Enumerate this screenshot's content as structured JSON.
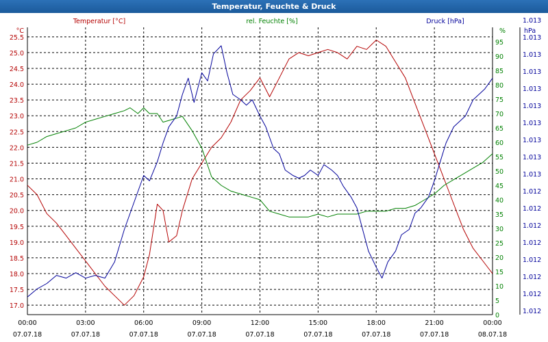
{
  "window": {
    "title": "Temperatur, Feuchte & Druck"
  },
  "colors": {
    "temp": "#b40000",
    "hum": "#008000",
    "press": "#00009a",
    "grid": "#000000"
  },
  "chart_data": {
    "type": "line",
    "title": "Temperatur, Feuchte & Druck",
    "x_hours": {
      "min": 0,
      "max": 24,
      "step": 3
    },
    "x_tick_times": [
      "00:00",
      "03:00",
      "06:00",
      "09:00",
      "12:00",
      "15:00",
      "18:00",
      "21:00",
      "00:00"
    ],
    "x_tick_dates": [
      "07.07.18",
      "07.07.18",
      "07.07.18",
      "07.07.18",
      "07.07.18",
      "07.07.18",
      "07.07.18",
      "07.07.18",
      "08.07.18"
    ],
    "axes": {
      "temp": {
        "label": "Temperatur [°C]",
        "unit": "°C",
        "min": 16.7,
        "max": 25.8,
        "ticks": [
          "17.0",
          "17.5",
          "18.0",
          "18.5",
          "19.0",
          "19.5",
          "20.0",
          "20.5",
          "21.0",
          "21.5",
          "22.0",
          "22.5",
          "23.0",
          "23.5",
          "24.0",
          "24.5",
          "25.0",
          "25.5"
        ]
      },
      "hum": {
        "label": "rel. Feuchte [%]",
        "unit": "%",
        "min": 0,
        "max": 100,
        "ticks": [
          "0",
          "5",
          "10",
          "15",
          "20",
          "25",
          "30",
          "35",
          "40",
          "45",
          "50",
          "55",
          "60",
          "65",
          "70",
          "75",
          "80",
          "85",
          "90",
          "95"
        ]
      },
      "press": {
        "label": "Druck [hPa]",
        "unit": "hPa",
        "ticks": [
          "1.012",
          "1.012",
          "1.012",
          "1.012",
          "1.012",
          "1.012",
          "1.012",
          "1.012",
          "1.013",
          "1.013",
          "1.013",
          "1.013",
          "1.013",
          "1.013",
          "1.013",
          "1.013",
          "1.013",
          "1.013"
        ]
      }
    },
    "series": [
      {
        "name": "Temperatur",
        "axis": "temp",
        "color": "#b40000",
        "x": [
          0,
          0.5,
          1,
          1.5,
          2,
          2.5,
          3,
          3.5,
          4,
          4.5,
          5,
          5.5,
          6,
          6.3,
          6.7,
          7,
          7.3,
          7.7,
          8,
          8.5,
          9,
          9.5,
          10,
          10.5,
          11,
          11.5,
          12,
          12.5,
          13,
          13.5,
          14,
          14.5,
          15,
          15.5,
          16,
          16.5,
          17,
          17.5,
          18,
          18.5,
          19,
          19.5,
          20,
          20.5,
          21,
          21.5,
          22,
          22.5,
          23,
          23.5,
          24
        ],
        "y": [
          20.8,
          20.5,
          19.9,
          19.6,
          19.2,
          18.8,
          18.4,
          18.0,
          17.6,
          17.3,
          17.0,
          17.3,
          17.9,
          18.6,
          20.2,
          20.0,
          19.0,
          19.2,
          20.0,
          21.0,
          21.5,
          22.0,
          22.3,
          22.8,
          23.5,
          23.8,
          24.2,
          23.6,
          24.2,
          24.8,
          25.0,
          24.9,
          25.0,
          25.1,
          25.0,
          24.8,
          25.2,
          25.1,
          25.4,
          25.2,
          24.7,
          24.2,
          23.4,
          22.6,
          21.8,
          21.0,
          20.2,
          19.4,
          18.8,
          18.4,
          18.0
        ]
      },
      {
        "name": "rel. Feuchte",
        "axis": "hum",
        "color": "#008000",
        "x": [
          0,
          0.5,
          1,
          1.5,
          2,
          2.5,
          3,
          3.5,
          4,
          4.5,
          5,
          5.3,
          5.7,
          6,
          6.3,
          6.7,
          7,
          7.5,
          8,
          8.5,
          9,
          9.5,
          10,
          10.5,
          11,
          11.5,
          12,
          12.5,
          13,
          13.5,
          14,
          14.5,
          15,
          15.5,
          16,
          16.5,
          17,
          17.5,
          18,
          18.5,
          19,
          19.5,
          20,
          20.5,
          21,
          21.5,
          22,
          22.5,
          23,
          23.5,
          24
        ],
        "y": [
          59,
          60,
          62,
          63,
          64,
          65,
          67,
          68,
          69,
          70,
          71,
          72,
          70,
          72,
          70,
          70,
          67,
          68,
          69,
          64,
          58,
          48,
          45,
          43,
          42,
          41,
          40,
          36,
          35,
          34,
          34,
          34,
          35,
          34,
          35,
          35,
          35,
          36,
          36,
          36,
          37,
          37,
          38,
          40,
          42,
          45,
          47,
          49,
          51,
          53,
          56
        ]
      },
      {
        "name": "Druck",
        "axis": "press",
        "color": "#00009a",
        "x": [
          0,
          0.5,
          1,
          1.5,
          2,
          2.5,
          3,
          3.5,
          4,
          4.5,
          5,
          5.5,
          6,
          6.3,
          6.7,
          7,
          7.3,
          7.7,
          8,
          8.3,
          8.6,
          9,
          9.3,
          9.6,
          10,
          10.3,
          10.6,
          11,
          11.3,
          11.6,
          12,
          12.3,
          12.7,
          13,
          13.3,
          13.7,
          14,
          14.3,
          14.6,
          15,
          15.3,
          15.7,
          16,
          16.3,
          16.7,
          17,
          17.3,
          17.6,
          18,
          18.3,
          18.6,
          19,
          19.3,
          19.7,
          20,
          20.3,
          20.7,
          21,
          21.3,
          21.6,
          22,
          22.3,
          22.6,
          23,
          23.3,
          23.6,
          24
        ],
        "y": [
          5,
          8,
          10,
          13,
          12,
          14,
          12,
          13,
          12,
          18,
          30,
          40,
          50,
          48,
          55,
          62,
          68,
          72,
          80,
          86,
          77,
          88,
          85,
          95,
          98,
          88,
          80,
          78,
          76,
          78,
          72,
          68,
          60,
          58,
          52,
          50,
          49,
          50,
          52,
          50,
          54,
          52,
          50,
          46,
          42,
          38,
          30,
          22,
          16,
          12,
          18,
          22,
          28,
          30,
          36,
          38,
          42,
          48,
          55,
          62,
          68,
          70,
          72,
          78,
          80,
          82,
          86
        ]
      }
    ]
  }
}
